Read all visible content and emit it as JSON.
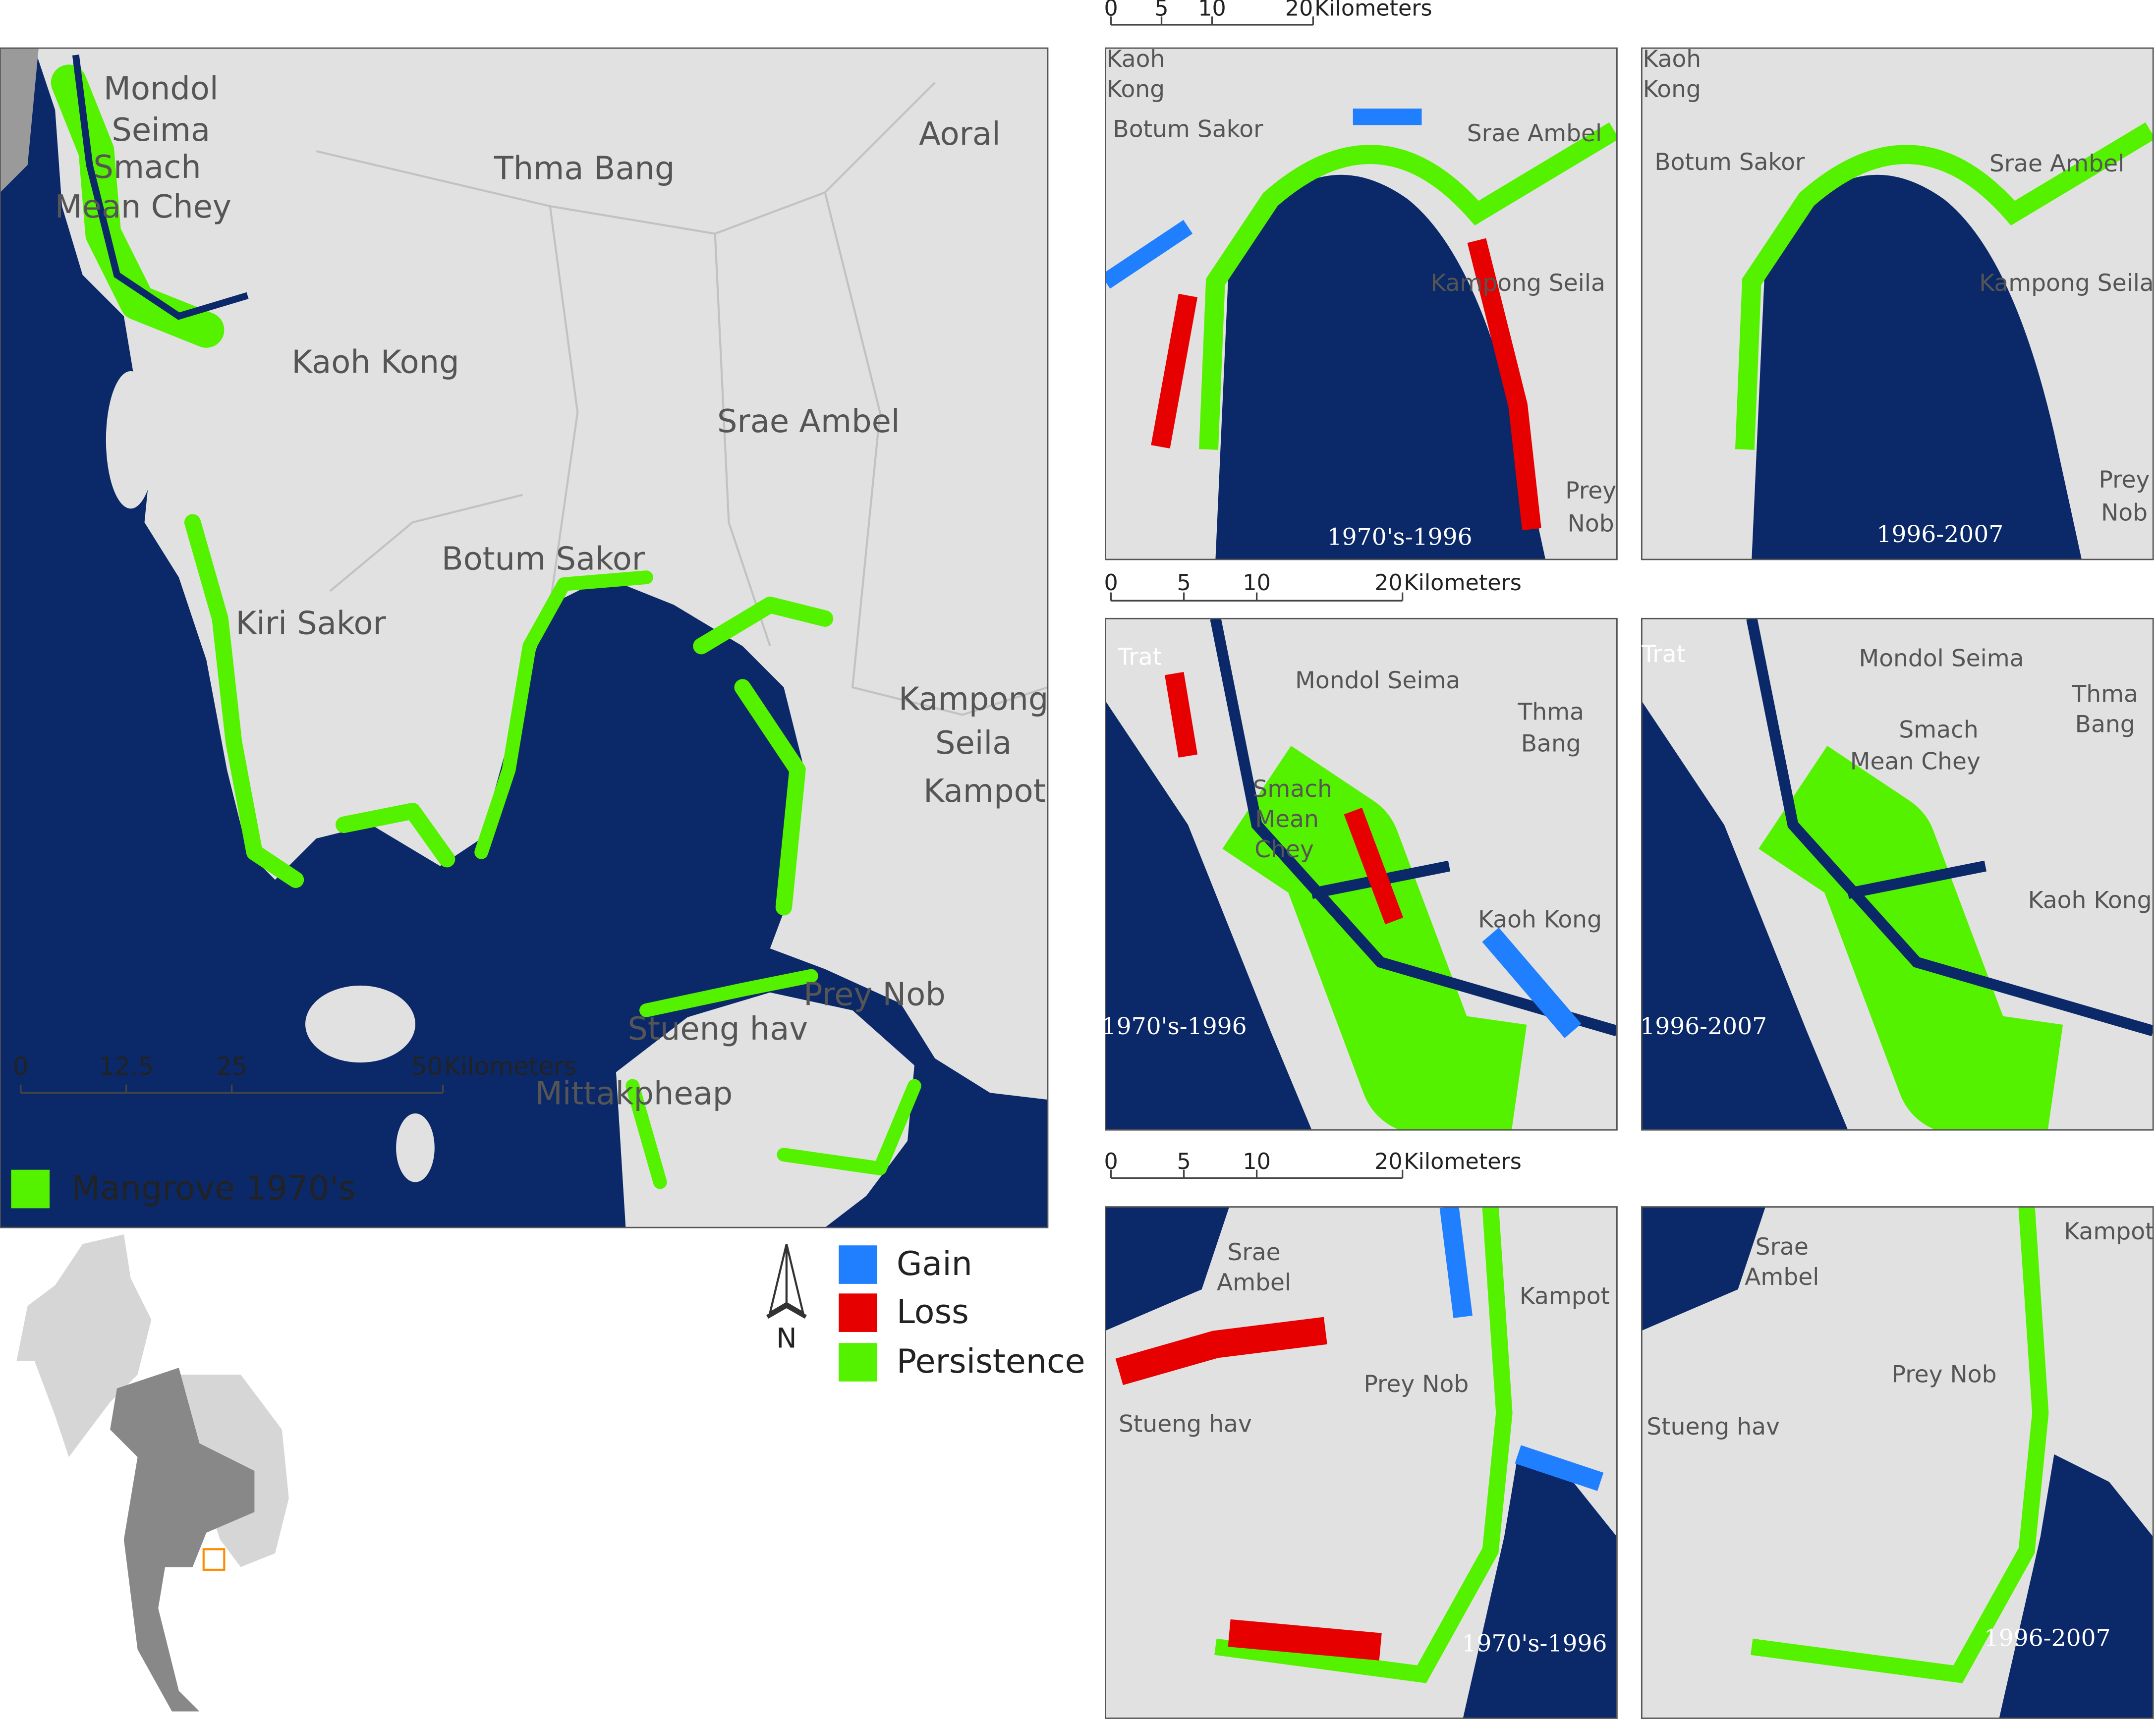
{
  "main_map": {
    "labels": [
      "Mondol",
      "Seima",
      "Smach",
      "Mean Chey",
      "Thma Bang",
      "Aoral",
      "Kaoh Kong",
      "Srae Ambel",
      "Botum Sakor",
      "Kiri Sakor",
      "Kampong",
      "Seila",
      "Kampot",
      "Prey Nob",
      "Stueng hav",
      "Mittakpheap"
    ],
    "scale_bar": {
      "ticks": [
        0,
        12.5,
        25,
        50
      ],
      "unit": "Kilometers"
    },
    "legend": "Mangrove 1970's"
  },
  "scale_bars": [
    {
      "ticks": [
        0,
        5,
        10,
        20
      ],
      "unit": "Kilometers"
    },
    {
      "ticks": [
        0,
        5,
        10,
        20
      ],
      "unit": "Kilometers"
    },
    {
      "ticks": [
        0,
        5,
        10,
        20
      ],
      "unit": "Kilometers"
    }
  ],
  "panels": [
    {
      "labels": [
        "Kaoh",
        "Kong",
        "Botum Sakor",
        "Srae Ambel",
        "Kampong Seila",
        "Prey",
        "Nob"
      ],
      "period": "1970's-1996"
    },
    {
      "labels": [
        "Kaoh",
        "Kong",
        "Botum Sakor",
        "Srae Ambel",
        "Kampong Seila",
        "Prey",
        "Nob"
      ],
      "period": "1996-2007"
    },
    {
      "labels": [
        "Trat",
        "Mondol Seima",
        "Thma",
        "Bang",
        "Smach",
        "Mean",
        "Chey",
        "Kaoh Kong"
      ],
      "period": "1970's-1996"
    },
    {
      "labels": [
        "Trat",
        "Mondol Seima",
        "Thma",
        "Bang",
        "Smach",
        "Mean Chey",
        "Kaoh Kong"
      ],
      "period": "1996-2007"
    },
    {
      "labels": [
        "Srae",
        "Ambel",
        "Kampot",
        "Prey Nob",
        "Stueng hav"
      ],
      "period": "1970's-1996"
    },
    {
      "labels": [
        "Srae",
        "Ambel",
        "Kampot",
        "Prey Nob",
        "Stueng hav"
      ],
      "period": "1996-2007"
    }
  ],
  "change_legend": [
    "Gain",
    "Loss",
    "Persistence"
  ],
  "north": "N"
}
